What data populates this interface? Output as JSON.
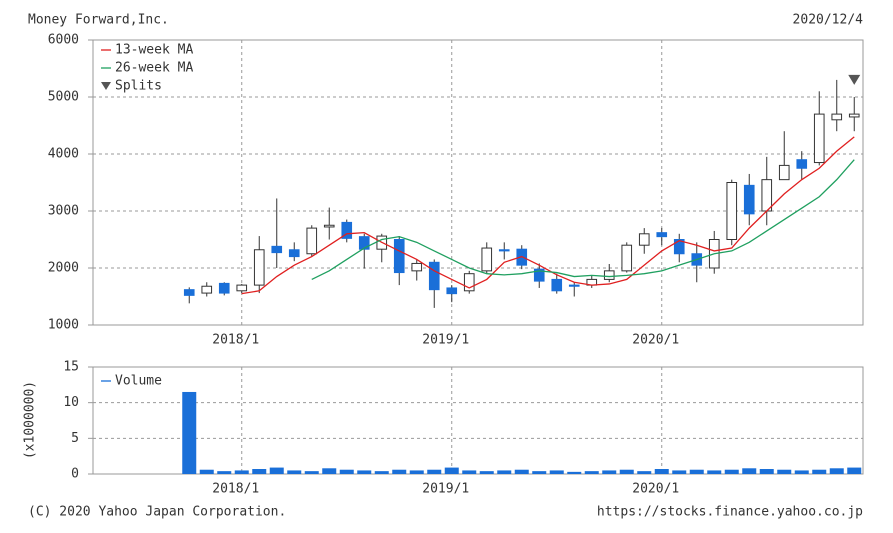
{
  "chart_data": [
    {
      "type": "candlestick",
      "title": "Money Forward,Inc.",
      "subtitle": "2020/12/4",
      "categories": [
        null,
        null,
        null,
        null,
        null,
        null,
        null,
        null,
        "2018/1",
        null,
        null,
        null,
        null,
        null,
        null,
        null,
        null,
        null,
        null,
        null,
        "2019/1",
        null,
        null,
        null,
        null,
        null,
        null,
        null,
        null,
        null,
        null,
        null,
        "2020/1",
        null,
        null,
        null,
        null,
        null,
        null,
        null,
        null,
        null,
        null,
        null
      ],
      "open": [
        null,
        null,
        null,
        null,
        null,
        1620,
        1560,
        1730,
        1600,
        1700,
        2380,
        2320,
        2250,
        2720,
        2800,
        2550,
        2330,
        2500,
        1950,
        2100,
        1650,
        1600,
        1950,
        2320,
        2330,
        1980,
        1800,
        1700,
        1700,
        1800,
        1950,
        2400,
        2620,
        2500,
        2250,
        2000,
        2500,
        3450,
        3000,
        3550,
        3900,
        3850,
        4600,
        4650
      ],
      "high": [
        null,
        null,
        null,
        null,
        null,
        1660,
        1750,
        1750,
        1720,
        2560,
        3220,
        2450,
        2750,
        3060,
        2850,
        2600,
        2600,
        2560,
        2150,
        2150,
        1700,
        1950,
        2450,
        2450,
        2400,
        2080,
        1900,
        1750,
        1870,
        2070,
        2450,
        2700,
        2700,
        2600,
        2450,
        2650,
        3550,
        3650,
        3950,
        4400,
        4050,
        5100,
        5300,
        5000
      ],
      "low": [
        null,
        null,
        null,
        null,
        null,
        1380,
        1500,
        1520,
        1560,
        1560,
        2000,
        2120,
        2200,
        2500,
        2450,
        1990,
        2100,
        1700,
        1780,
        1300,
        1400,
        1550,
        1900,
        2150,
        1980,
        1650,
        1550,
        1500,
        1650,
        1750,
        1920,
        2250,
        2400,
        2100,
        1750,
        1900,
        2400,
        2750,
        2750,
        3550,
        3550,
        3800,
        4400,
        4400
      ],
      "close": [
        null,
        null,
        null,
        null,
        null,
        1520,
        1680,
        1560,
        1700,
        2320,
        2270,
        2200,
        2700,
        2750,
        2520,
        2330,
        2560,
        1920,
        2080,
        1620,
        1550,
        1900,
        2350,
        2300,
        2050,
        1770,
        1600,
        1680,
        1800,
        1950,
        2400,
        2600,
        2550,
        2250,
        2050,
        2500,
        3500,
        2950,
        3550,
        3800,
        3750,
        4700,
        4700,
        4700
      ],
      "up_color": "#ffffff",
      "down_color": "#1a6fd8",
      "lines": [
        {
          "name": "13-week MA",
          "color": "#e02020",
          "values": [
            null,
            null,
            null,
            null,
            null,
            null,
            null,
            null,
            1550,
            1600,
            1850,
            2050,
            2200,
            2400,
            2600,
            2620,
            2450,
            2300,
            2150,
            1950,
            1800,
            1650,
            1800,
            2100,
            2200,
            2050,
            1880,
            1750,
            1700,
            1720,
            1800,
            2050,
            2300,
            2480,
            2400,
            2300,
            2350,
            2700,
            3000,
            3300,
            3550,
            3750,
            4050,
            4300
          ]
        },
        {
          "name": "26-week MA",
          "color": "#20a060",
          "values": [
            null,
            null,
            null,
            null,
            null,
            null,
            null,
            null,
            null,
            null,
            null,
            null,
            1800,
            1950,
            2150,
            2350,
            2500,
            2550,
            2450,
            2300,
            2150,
            2000,
            1900,
            1880,
            1900,
            1950,
            1920,
            1850,
            1870,
            1850,
            1870,
            1900,
            1950,
            2050,
            2150,
            2250,
            2300,
            2450,
            2650,
            2850,
            3050,
            3250,
            3550,
            3900
          ]
        }
      ],
      "markers": {
        "name": "Splits",
        "color": "#555555",
        "values": [
          null,
          null,
          null,
          null,
          null,
          null,
          null,
          null,
          null,
          null,
          null,
          null,
          null,
          null,
          null,
          null,
          null,
          null,
          null,
          null,
          null,
          null,
          null,
          null,
          null,
          null,
          null,
          null,
          null,
          null,
          null,
          null,
          null,
          null,
          null,
          null,
          null,
          null,
          null,
          null,
          null,
          null,
          null,
          5300
        ]
      },
      "ylim": [
        1000,
        6000
      ],
      "yticks": [
        1000,
        2000,
        3000,
        4000,
        5000,
        6000
      ],
      "grid": true,
      "legend": "upper-left"
    },
    {
      "type": "bar",
      "ylabel": "(x1000000)",
      "categories": [
        null,
        null,
        null,
        null,
        null,
        null,
        null,
        null,
        "2018/1",
        null,
        null,
        null,
        null,
        null,
        null,
        null,
        null,
        null,
        null,
        null,
        "2019/1",
        null,
        null,
        null,
        null,
        null,
        null,
        null,
        null,
        null,
        null,
        null,
        "2020/1",
        null,
        null,
        null,
        null,
        null,
        null,
        null,
        null,
        null,
        null,
        null
      ],
      "series": [
        {
          "name": "Volume",
          "color": "#1a6fd8",
          "values": [
            null,
            null,
            null,
            null,
            null,
            11.5,
            0.6,
            0.4,
            0.5,
            0.7,
            0.9,
            0.5,
            0.4,
            0.8,
            0.6,
            0.5,
            0.4,
            0.6,
            0.5,
            0.6,
            0.9,
            0.5,
            0.4,
            0.5,
            0.6,
            0.4,
            0.5,
            0.3,
            0.4,
            0.5,
            0.6,
            0.4,
            0.7,
            0.5,
            0.6,
            0.5,
            0.6,
            0.8,
            0.7,
            0.6,
            0.5,
            0.6,
            0.8,
            0.9
          ]
        }
      ],
      "ylim": [
        0,
        15
      ],
      "yticks": [
        0,
        5,
        10,
        15
      ],
      "grid": true,
      "legend": "upper-left"
    }
  ],
  "footer": {
    "copyright": "(C) 2020 Yahoo Japan Corporation.",
    "url": "https://stocks.finance.yahoo.co.jp"
  }
}
